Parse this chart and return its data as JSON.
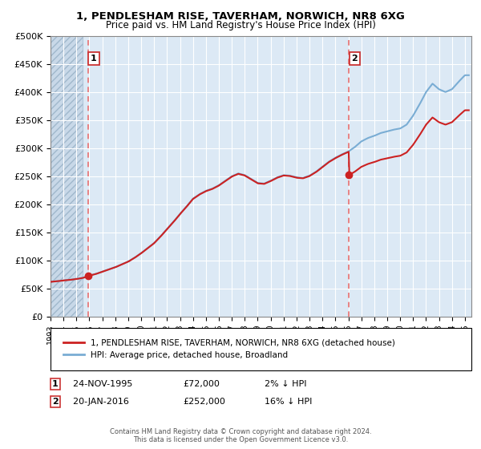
{
  "title1": "1, PENDLESHAM RISE, TAVERHAM, NORWICH, NR8 6XG",
  "title2": "Price paid vs. HM Land Registry's House Price Index (HPI)",
  "ylabel_ticks": [
    "£0",
    "£50K",
    "£100K",
    "£150K",
    "£200K",
    "£250K",
    "£300K",
    "£350K",
    "£400K",
    "£450K",
    "£500K"
  ],
  "ytick_values": [
    0,
    50000,
    100000,
    150000,
    200000,
    250000,
    300000,
    350000,
    400000,
    450000,
    500000
  ],
  "sale1_date": 1995.9,
  "sale1_price": 72000,
  "sale2_date": 2016.05,
  "sale2_price": 252000,
  "legend_line1": "1, PENDLESHAM RISE, TAVERHAM, NORWICH, NR8 6XG (detached house)",
  "legend_line2": "HPI: Average price, detached house, Broadland",
  "footer": "Contains HM Land Registry data © Crown copyright and database right 2024.\nThis data is licensed under the Open Government Licence v3.0.",
  "hpi_color": "#7aadd4",
  "price_color": "#cc2222",
  "vline_color": "#e87070",
  "bg_color": "#dce9f5",
  "grid_color": "#ffffff",
  "xmin": 1993,
  "xmax": 2025.5,
  "ymin": 0,
  "ymax": 500000,
  "hpi_years": [
    1993,
    1993.5,
    1994,
    1994.5,
    1995,
    1995.5,
    1996,
    1996.5,
    1997,
    1997.5,
    1998,
    1998.5,
    1999,
    1999.5,
    2000,
    2000.5,
    2001,
    2001.5,
    2002,
    2002.5,
    2003,
    2003.5,
    2004,
    2004.5,
    2005,
    2005.5,
    2006,
    2006.5,
    2007,
    2007.5,
    2008,
    2008.5,
    2009,
    2009.5,
    2010,
    2010.5,
    2011,
    2011.5,
    2012,
    2012.5,
    2013,
    2013.5,
    2014,
    2014.5,
    2015,
    2015.5,
    2016,
    2016.5,
    2017,
    2017.5,
    2018,
    2018.5,
    2019,
    2019.5,
    2020,
    2020.5,
    2021,
    2021.5,
    2022,
    2022.5,
    2023,
    2023.5,
    2024,
    2024.5,
    2025
  ],
  "hpi_values": [
    62000,
    63000,
    64500,
    65500,
    67000,
    69000,
    73000,
    76000,
    80000,
    84000,
    88000,
    93000,
    98000,
    105000,
    113000,
    122000,
    131000,
    143000,
    156000,
    169000,
    183000,
    196000,
    210000,
    218000,
    224000,
    228000,
    234000,
    242000,
    250000,
    255000,
    252000,
    245000,
    238000,
    237000,
    242000,
    248000,
    252000,
    251000,
    248000,
    247000,
    251000,
    258000,
    267000,
    276000,
    283000,
    289000,
    294000,
    302000,
    312000,
    318000,
    322000,
    327000,
    330000,
    333000,
    335000,
    342000,
    358000,
    378000,
    400000,
    415000,
    405000,
    400000,
    405000,
    418000,
    430000
  ]
}
